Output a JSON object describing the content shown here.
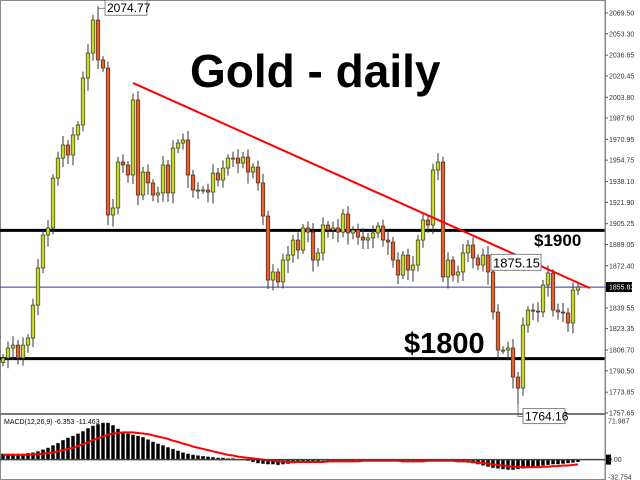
{
  "chart_data": {
    "type": "candlestick",
    "title": "Gold - daily",
    "price_axis": {
      "ylim": [
        1757.65,
        2069.5
      ],
      "tick_labels": [
        "2069.50",
        "2053.30",
        "2036.65",
        "2020.45",
        "2003.80",
        "1987.60",
        "1970.95",
        "1954.75",
        "1938.10",
        "1921.90",
        "1905.25",
        "1889.05",
        "1872.40",
        "1855.83",
        "1839.55",
        "1823.35",
        "1806.70",
        "1790.50",
        "1773.85",
        "1757.65"
      ],
      "current_price_label": "1855.83"
    },
    "closes": [
      1800.5,
      1808.3,
      1810.6,
      1800.5,
      1810.6,
      1816.1,
      1841.8,
      1870.7,
      1896.4,
      1901.9,
      1940.8,
      1956.4,
      1966.6,
      1958.8,
      1974.4,
      1982.2,
      2018.8,
      2038.3,
      2064.0,
      2032.9,
      2026.6,
      1912.0,
      1917.5,
      1953.3,
      1951,
      1943.2,
      2001.7,
      1927.6,
      1945.5,
      1937,
      1927.6,
      1929.2,
      1951,
      1929.2,
      1964.2,
      1968.1,
      1970.5,
      1943.2,
      1931.5,
      1931.5,
      1931.5,
      1929.9,
      1944.7,
      1939.3,
      1948.6,
      1956.4,
      1956.4,
      1952.5,
      1957.2,
      1945.5,
      1949.4,
      1937,
      1911.2,
      1861.3,
      1867.6,
      1859.8,
      1876.9,
      1880.8,
      1892.5,
      1884.7,
      1901.9,
      1898.7,
      1876.9,
      1882.4,
      1904.2,
      1900.3,
      1901.9,
      1898.7,
      1912.8,
      1898,
      1900.3,
      1894.8,
      1892.5,
      1894.1,
      1898,
      1903.4,
      1892.5,
      1890.9,
      1876.9,
      1865.2,
      1880.8,
      1869.1,
      1873,
      1892.5,
      1908.1,
      1904.2,
      1947.1,
      1953.3,
      1863.7,
      1876.9,
      1865.2,
      1867.6,
      1882.4,
      1888.6,
      1878.5,
      1873,
      1880.8,
      1867.6,
      1836.4,
      1806.7,
      1806.7,
      1808.3,
      1785.7,
      1777.1,
      1826.2,
      1837.9,
      1837.1,
      1836.4,
      1857.4,
      1866.8,
      1837.9,
      1836.4,
      1835.6,
      1827.8,
      1853.5,
      1855.9
    ],
    "first_open": 1797,
    "annotations": {
      "high": {
        "label": "2074.77",
        "value": 2074.77,
        "index": 19
      },
      "swing": {
        "label": "1875.15",
        "value": 1875.15,
        "index": 108
      },
      "low": {
        "label": "1764.16",
        "value": 1764.16,
        "index": 103
      }
    },
    "levels": [
      {
        "value": 1900,
        "label": "$1900",
        "color": "#000000"
      },
      {
        "value": 1800,
        "label": "$1800",
        "color": "#000000"
      },
      {
        "value": 1855.83,
        "color": "#3333aa"
      }
    ],
    "trendline": {
      "from": [
        26,
        2015
      ],
      "to": [
        117.4,
        1855
      ],
      "color": "#ff0000"
    },
    "colors": {
      "up": "#c8d82a",
      "down": "#e8602a",
      "macd_hist": "#000000",
      "macd_signal": "#ff0000"
    },
    "macd": {
      "label": "MACD(12,26,9) -6.353 -11.463",
      "ylim": [
        -32.754,
        71.987
      ],
      "tick_labels": [
        "71.987",
        "0.00",
        "-32.754"
      ],
      "histogram": [
        10,
        10,
        10,
        10,
        10,
        11,
        12,
        14,
        17,
        20,
        24,
        28,
        33,
        37,
        40,
        44,
        48,
        53,
        57,
        60,
        62,
        62,
        58,
        52,
        47,
        44,
        42,
        40,
        38,
        34,
        30,
        27,
        24,
        21,
        18,
        15,
        12,
        10,
        8,
        7,
        6,
        5,
        4,
        3,
        3,
        2,
        2,
        1,
        0,
        -2,
        -4,
        -6,
        -7,
        -8,
        -8,
        -9,
        -8,
        -7,
        -6,
        -5,
        -4,
        -4,
        -3,
        -3,
        -2,
        -2,
        -2,
        -3,
        -3,
        -2,
        -2,
        -1,
        -1,
        -1,
        -1,
        -2,
        -2,
        -2,
        -3,
        -3,
        -4,
        -4,
        -4,
        -3,
        -2,
        -1,
        0,
        0,
        -1,
        -2,
        -3,
        -4,
        -4,
        -5,
        -6,
        -8,
        -10,
        -12,
        -14,
        -15,
        -16,
        -17,
        -17,
        -16,
        -15,
        -14,
        -12,
        -11,
        -10,
        -9,
        -8,
        -8,
        -7,
        -6,
        -5,
        -4
      ],
      "signal": [
        8,
        8,
        8,
        8,
        8,
        8,
        9,
        9,
        10,
        11,
        12,
        14,
        16,
        18,
        20,
        23,
        26,
        29,
        33,
        36,
        39,
        42,
        44,
        45,
        46,
        46,
        46,
        45,
        44,
        43,
        41,
        39,
        37,
        35,
        32,
        30,
        27,
        25,
        22,
        20,
        18,
        16,
        14,
        12,
        10,
        8,
        7,
        5,
        4,
        3,
        2,
        1,
        0,
        -1,
        -2,
        -3,
        -3,
        -4,
        -4,
        -4,
        -4,
        -4,
        -4,
        -4,
        -4,
        -3,
        -3,
        -3,
        -3,
        -3,
        -3,
        -3,
        -2,
        -2,
        -2,
        -2,
        -2,
        -2,
        -2,
        -2,
        -3,
        -3,
        -3,
        -3,
        -3,
        -2,
        -2,
        -2,
        -2,
        -2,
        -2,
        -3,
        -3,
        -3,
        -4,
        -5,
        -6,
        -7,
        -8,
        -9,
        -10,
        -11,
        -12,
        -12,
        -13,
        -13,
        -13,
        -13,
        -12,
        -12,
        -11,
        -11,
        -10,
        -10,
        -9,
        -8
      ]
    }
  }
}
